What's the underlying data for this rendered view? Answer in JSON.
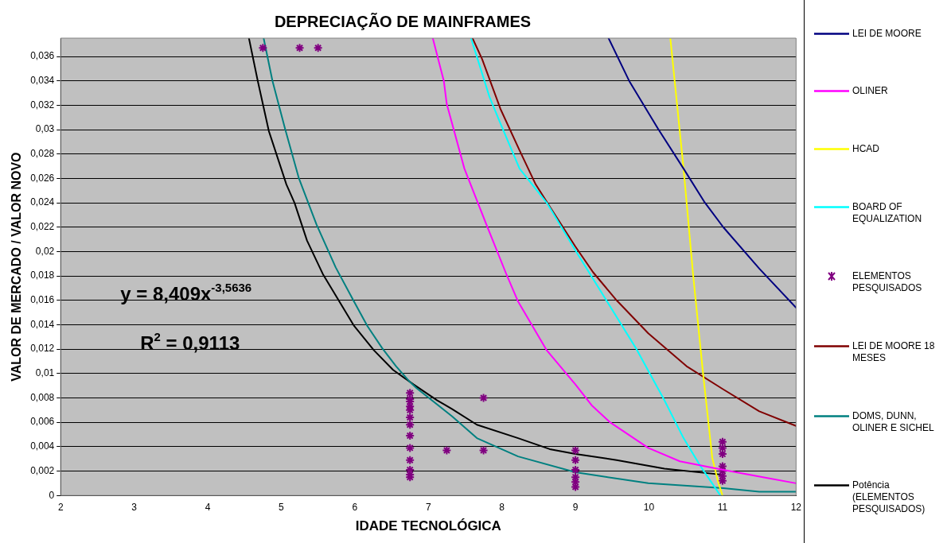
{
  "chart_data": {
    "type": "line",
    "title": "DEPRECIAÇÃO DE MAINFRAMES",
    "xlabel": "IDADE TECNOLÓGICA",
    "ylabel": "VALOR DE MERCADO / VALOR NOVO",
    "xlim": [
      2,
      12
    ],
    "xticks": [
      2,
      3,
      4,
      5,
      6,
      7,
      8,
      9,
      10,
      11,
      12
    ],
    "ylim": [
      0,
      0.0375
    ],
    "yticks": [
      0,
      {
        "value": 0.002,
        "label": "0,002"
      },
      {
        "value": 0.004,
        "label": "0,004"
      },
      {
        "value": 0.006,
        "label": "0,006"
      },
      {
        "value": 0.008,
        "label": "0,008"
      },
      {
        "value": 0.01,
        "label": "0,01"
      },
      {
        "value": 0.012,
        "label": "0,012"
      },
      {
        "value": 0.014,
        "label": "0,014"
      },
      {
        "value": 0.016,
        "label": "0,016"
      },
      {
        "value": 0.018,
        "label": "0,018"
      },
      {
        "value": 0.02,
        "label": "0,02"
      },
      {
        "value": 0.022,
        "label": "0,022"
      },
      {
        "value": 0.024,
        "label": "0,024"
      },
      {
        "value": 0.026,
        "label": "0,026"
      },
      {
        "value": 0.028,
        "label": "0,028"
      },
      {
        "value": 0.03,
        "label": "0,03"
      },
      {
        "value": 0.032,
        "label": "0,032"
      },
      {
        "value": 0.034,
        "label": "0,034"
      },
      {
        "value": 0.036,
        "label": "0,036"
      }
    ],
    "grid": "y",
    "legend": "right",
    "marker": "none",
    "line_style": "solid",
    "annotations": [
      "y = 8,409x$^{-3,5636}$",
      "R$^{2}$ = 0,9113"
    ],
    "series": [
      {
        "name": "LEI DE MOORE",
        "color": "#000080",
        "x": [
          9.45,
          9.73,
          10.12,
          10.47,
          10.75,
          11.01,
          11.5,
          12
        ],
        "values": [
          0.0375,
          0.034,
          0.0301,
          0.0268,
          0.0241,
          0.022,
          0.0186,
          0.0154
        ]
      },
      {
        "name": "OLINER",
        "color": "#ff00ff",
        "x": [
          7.06,
          7.21,
          7.25,
          7.49,
          7.79,
          8.05,
          8.22,
          8.61,
          9,
          9.22,
          9.47,
          9.99,
          10.42,
          11.01,
          11.55,
          12
        ],
        "values": [
          0.0375,
          0.034,
          0.0321,
          0.0268,
          0.0222,
          0.0183,
          0.0159,
          0.0119,
          0.0091,
          0.0074,
          0.006,
          0.0039,
          0.0028,
          0.0021,
          0.0015,
          0.001
        ]
      },
      {
        "name": "HCAD",
        "color": "#ffff00",
        "x": [
          10.29,
          10.47,
          10.6,
          10.73,
          10.86,
          10.94,
          11
        ],
        "values": [
          0.0375,
          0.0268,
          0.0181,
          0.0103,
          0.0031,
          0.0011,
          0
        ]
      },
      {
        "name": "BOARD OF EQUALIZATION",
        "color": "#00ffff",
        "x": [
          7.58,
          7.83,
          7.96,
          8.24,
          8.61,
          9,
          9.39,
          9.82,
          10.21,
          10.47,
          10.7,
          10.88,
          10.97
        ],
        "values": [
          0.0375,
          0.0327,
          0.0308,
          0.0268,
          0.024,
          0.0201,
          0.0163,
          0.0121,
          0.0078,
          0.0047,
          0.0024,
          0.0008,
          0
        ]
      },
      {
        "name": "ELEMENTOS PESQUISADOS",
        "type": "scatter",
        "marker": "cross",
        "color": "#800080",
        "x": [
          4.75,
          5.25,
          5.5,
          6.75,
          6.75,
          6.75,
          6.75,
          6.75,
          6.75,
          6.75,
          6.75,
          6.75,
          6.75,
          6.75,
          6.75,
          6.75,
          7.25,
          7.75,
          7.75,
          9,
          9,
          9,
          9,
          9,
          9,
          11,
          11,
          11,
          11,
          11,
          11,
          11
        ],
        "values": [
          0.0367,
          0.0367,
          0.0367,
          0.0084,
          0.0079,
          0.0077,
          0.0073,
          0.007,
          0.0064,
          0.0058,
          0.0049,
          0.0039,
          0.0029,
          0.0021,
          0.0017,
          0.0015,
          0.0037,
          0.008,
          0.0037,
          0.0037,
          0.0029,
          0.0021,
          0.0015,
          0.0011,
          0.0007,
          0.0044,
          0.0039,
          0.0034,
          0.0024,
          0.002,
          0.0016,
          0.0012
        ]
      },
      {
        "name": "LEI DE MOORE 18 MESES",
        "color": "#800000",
        "x": [
          7.6,
          7.73,
          7.98,
          8.24,
          8.46,
          8.65,
          9,
          9.24,
          9.56,
          9.99,
          10.51,
          11.01,
          11.5,
          12
        ],
        "values": [
          0.0375,
          0.0358,
          0.0317,
          0.0283,
          0.0255,
          0.0237,
          0.0204,
          0.0183,
          0.016,
          0.0133,
          0.0106,
          0.0087,
          0.0069,
          0.0057
        ]
      },
      {
        "name": "DOMS, DUNN, OLINER E SICHEL",
        "color": "#008080",
        "x": [
          4.76,
          4.88,
          5.05,
          5.24,
          5.48,
          5.74,
          5.98,
          6.17,
          6.37,
          6.56,
          6.75,
          6.84,
          7.32,
          7.66,
          8.22,
          9,
          9.99,
          11.01,
          11.5,
          12
        ],
        "values": [
          0.0375,
          0.034,
          0.0301,
          0.026,
          0.0222,
          0.0187,
          0.016,
          0.0139,
          0.0121,
          0.0106,
          0.0093,
          0.0088,
          0.0065,
          0.0047,
          0.0032,
          0.0019,
          0.001,
          0.0006,
          0.0003,
          0.0003
        ]
      },
      {
        "name": "Potência (ELEMENTOS PESQUISADOS)",
        "color": "#000000",
        "x": [
          4.56,
          4.68,
          4.83,
          5.07,
          5.18,
          5.35,
          5.57,
          5.78,
          5.99,
          6.26,
          6.52,
          6.8,
          7.12,
          7.32,
          7.66,
          8.22,
          8.65,
          9,
          9.56,
          10.21,
          11
        ],
        "values": [
          0.0375,
          0.034,
          0.0299,
          0.0255,
          0.024,
          0.0209,
          0.0181,
          0.016,
          0.0139,
          0.0119,
          0.0103,
          0.0091,
          0.0078,
          0.0071,
          0.0058,
          0.0047,
          0.0038,
          0.0034,
          0.0029,
          0.0022,
          0.0017
        ]
      }
    ]
  }
}
